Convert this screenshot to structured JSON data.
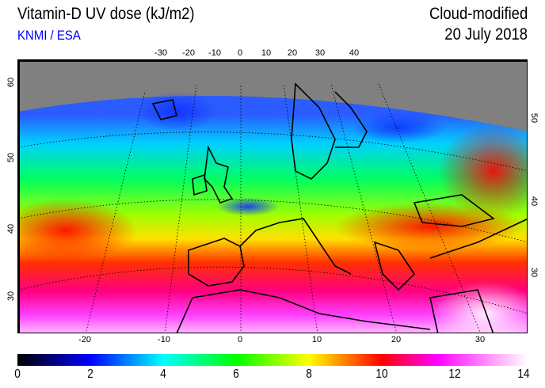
{
  "header": {
    "title": "Vitamin-D UV dose (kJ/m2)",
    "credit": "KNMI / ESA",
    "mode": "Cloud-modified",
    "date": "20 July 2018"
  },
  "axes": {
    "top_lon": [
      "-30",
      "-20",
      "-10",
      "0",
      "10",
      "20",
      "30",
      "40"
    ],
    "bottom_lon": [
      "-20",
      "-10",
      "0",
      "10",
      "20",
      "30"
    ],
    "left_lat": [
      "60",
      "50",
      "40",
      "30"
    ],
    "right_lat": [
      "50",
      "40",
      "30"
    ]
  },
  "colorbar": {
    "ticks": [
      "0",
      "2",
      "4",
      "6",
      "8",
      "10",
      "12",
      "14"
    ],
    "range": [
      0,
      14
    ],
    "stops": [
      {
        "value": 0,
        "color": "#000000"
      },
      {
        "value": 2,
        "color": "#0000ff"
      },
      {
        "value": 4,
        "color": "#00ffff"
      },
      {
        "value": 6,
        "color": "#00ff00"
      },
      {
        "value": 8,
        "color": "#ffff00"
      },
      {
        "value": 9,
        "color": "#ff8000"
      },
      {
        "value": 10,
        "color": "#ff0000"
      },
      {
        "value": 11.5,
        "color": "#ff00ff"
      },
      {
        "value": 14,
        "color": "#ffffff"
      }
    ]
  }
}
